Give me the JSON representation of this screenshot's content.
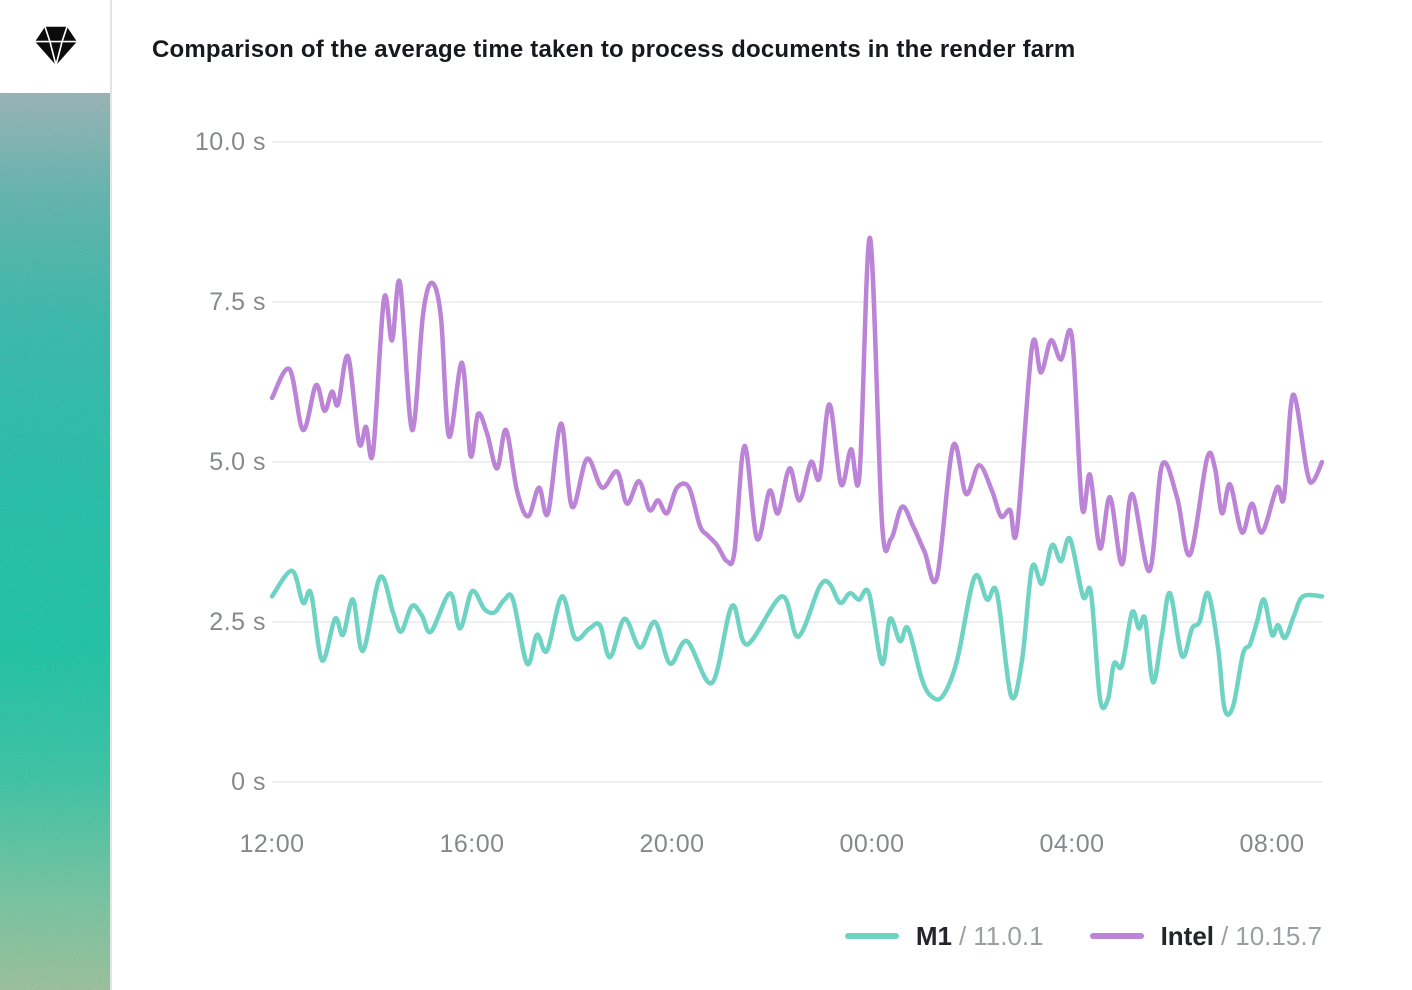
{
  "sidebar": {
    "logo_icon": "sketch-diamond-icon",
    "gradient_colors": [
      "#93b1b4",
      "#2ab7a7",
      "#13bea4",
      "#0cc2a1",
      "#6ec39c",
      "#96bf96"
    ]
  },
  "legend": {
    "separator": "/"
  },
  "chart_data": {
    "type": "line",
    "title": "Comparison of the average time taken to process documents in the render farm",
    "xlabel": "",
    "ylabel": "seconds",
    "grid": "horizontal",
    "legend_position": "bottom-right",
    "ylim": [
      0,
      10
    ],
    "x_span_hours": [
      0,
      21
    ],
    "y_ticks": [
      {
        "v": 0,
        "label": "0 s"
      },
      {
        "v": 2.5,
        "label": "2.5 s"
      },
      {
        "v": 5,
        "label": "5.0 s"
      },
      {
        "v": 7.5,
        "label": "7.5 s"
      },
      {
        "v": 10,
        "label": "10.0 s"
      }
    ],
    "x_ticks": [
      {
        "t": 0,
        "label": "12:00"
      },
      {
        "t": 4,
        "label": "16:00"
      },
      {
        "t": 8,
        "label": "20:00"
      },
      {
        "t": 12,
        "label": "00:00"
      },
      {
        "t": 16,
        "label": "04:00"
      },
      {
        "t": 20,
        "label": "08:00"
      }
    ],
    "series": [
      {
        "name": "M1",
        "os_version": "11.0.1",
        "color": "#6fd3c4",
        "points": [
          [
            0.0,
            2.9
          ],
          [
            0.4,
            3.3
          ],
          [
            0.62,
            2.8
          ],
          [
            0.78,
            2.95
          ],
          [
            1.0,
            1.9
          ],
          [
            1.26,
            2.55
          ],
          [
            1.42,
            2.3
          ],
          [
            1.62,
            2.85
          ],
          [
            1.82,
            2.05
          ],
          [
            2.16,
            3.2
          ],
          [
            2.42,
            2.65
          ],
          [
            2.58,
            2.35
          ],
          [
            2.8,
            2.75
          ],
          [
            3.0,
            2.6
          ],
          [
            3.18,
            2.35
          ],
          [
            3.56,
            2.95
          ],
          [
            3.76,
            2.4
          ],
          [
            4.0,
            2.98
          ],
          [
            4.25,
            2.7
          ],
          [
            4.45,
            2.65
          ],
          [
            4.65,
            2.85
          ],
          [
            4.82,
            2.85
          ],
          [
            5.1,
            1.85
          ],
          [
            5.3,
            2.3
          ],
          [
            5.5,
            2.05
          ],
          [
            5.8,
            2.9
          ],
          [
            6.06,
            2.25
          ],
          [
            6.35,
            2.4
          ],
          [
            6.56,
            2.45
          ],
          [
            6.76,
            1.95
          ],
          [
            7.05,
            2.55
          ],
          [
            7.36,
            2.1
          ],
          [
            7.66,
            2.5
          ],
          [
            7.96,
            1.85
          ],
          [
            8.3,
            2.2
          ],
          [
            8.8,
            1.55
          ],
          [
            9.2,
            2.75
          ],
          [
            9.5,
            2.15
          ],
          [
            10.2,
            2.9
          ],
          [
            10.52,
            2.27
          ],
          [
            10.95,
            3.05
          ],
          [
            11.15,
            3.1
          ],
          [
            11.36,
            2.8
          ],
          [
            11.56,
            2.95
          ],
          [
            11.74,
            2.85
          ],
          [
            11.94,
            2.95
          ],
          [
            12.2,
            1.85
          ],
          [
            12.36,
            2.55
          ],
          [
            12.56,
            2.2
          ],
          [
            12.72,
            2.4
          ],
          [
            13.0,
            1.6
          ],
          [
            13.2,
            1.33
          ],
          [
            13.42,
            1.35
          ],
          [
            13.7,
            1.9
          ],
          [
            14.05,
            3.2
          ],
          [
            14.3,
            2.85
          ],
          [
            14.5,
            2.95
          ],
          [
            14.78,
            1.35
          ],
          [
            15.0,
            1.9
          ],
          [
            15.2,
            3.35
          ],
          [
            15.4,
            3.1
          ],
          [
            15.6,
            3.7
          ],
          [
            15.78,
            3.45
          ],
          [
            15.96,
            3.8
          ],
          [
            16.22,
            2.9
          ],
          [
            16.38,
            2.95
          ],
          [
            16.56,
            1.3
          ],
          [
            16.72,
            1.3
          ],
          [
            16.84,
            1.85
          ],
          [
            17.0,
            1.82
          ],
          [
            17.2,
            2.65
          ],
          [
            17.34,
            2.4
          ],
          [
            17.46,
            2.55
          ],
          [
            17.62,
            1.56
          ],
          [
            17.8,
            2.3
          ],
          [
            17.96,
            2.95
          ],
          [
            18.2,
            1.97
          ],
          [
            18.4,
            2.4
          ],
          [
            18.55,
            2.5
          ],
          [
            18.72,
            2.95
          ],
          [
            18.92,
            2.1
          ],
          [
            19.05,
            1.15
          ],
          [
            19.22,
            1.18
          ],
          [
            19.42,
            2.0
          ],
          [
            19.56,
            2.15
          ],
          [
            19.7,
            2.5
          ],
          [
            19.84,
            2.85
          ],
          [
            20.0,
            2.3
          ],
          [
            20.12,
            2.45
          ],
          [
            20.26,
            2.25
          ],
          [
            20.44,
            2.6
          ],
          [
            20.62,
            2.9
          ],
          [
            21.0,
            2.9
          ]
        ]
      },
      {
        "name": "Intel",
        "os_version": "10.15.7",
        "color": "#bc84d6",
        "points": [
          [
            0.0,
            6.0
          ],
          [
            0.35,
            6.45
          ],
          [
            0.62,
            5.5
          ],
          [
            0.88,
            6.2
          ],
          [
            1.05,
            5.8
          ],
          [
            1.2,
            6.1
          ],
          [
            1.32,
            5.9
          ],
          [
            1.52,
            6.65
          ],
          [
            1.74,
            5.3
          ],
          [
            1.88,
            5.55
          ],
          [
            2.02,
            5.15
          ],
          [
            2.24,
            7.55
          ],
          [
            2.4,
            6.9
          ],
          [
            2.56,
            7.8
          ],
          [
            2.8,
            5.5
          ],
          [
            3.02,
            7.3
          ],
          [
            3.2,
            7.8
          ],
          [
            3.38,
            7.25
          ],
          [
            3.54,
            5.4
          ],
          [
            3.8,
            6.55
          ],
          [
            3.97,
            5.1
          ],
          [
            4.12,
            5.75
          ],
          [
            4.3,
            5.45
          ],
          [
            4.5,
            4.9
          ],
          [
            4.68,
            5.5
          ],
          [
            4.9,
            4.55
          ],
          [
            5.12,
            4.15
          ],
          [
            5.34,
            4.6
          ],
          [
            5.52,
            4.2
          ],
          [
            5.78,
            5.6
          ],
          [
            6.0,
            4.3
          ],
          [
            6.3,
            5.05
          ],
          [
            6.6,
            4.6
          ],
          [
            6.9,
            4.85
          ],
          [
            7.1,
            4.35
          ],
          [
            7.34,
            4.7
          ],
          [
            7.55,
            4.25
          ],
          [
            7.72,
            4.4
          ],
          [
            7.9,
            4.2
          ],
          [
            8.1,
            4.6
          ],
          [
            8.34,
            4.6
          ],
          [
            8.56,
            4.0
          ],
          [
            8.72,
            3.85
          ],
          [
            8.9,
            3.7
          ],
          [
            9.1,
            3.45
          ],
          [
            9.25,
            3.6
          ],
          [
            9.45,
            5.25
          ],
          [
            9.7,
            3.8
          ],
          [
            9.95,
            4.55
          ],
          [
            10.12,
            4.2
          ],
          [
            10.35,
            4.9
          ],
          [
            10.55,
            4.4
          ],
          [
            10.78,
            5.0
          ],
          [
            10.95,
            4.75
          ],
          [
            11.15,
            5.9
          ],
          [
            11.38,
            4.65
          ],
          [
            11.58,
            5.2
          ],
          [
            11.75,
            4.8
          ],
          [
            11.96,
            8.5
          ],
          [
            12.2,
            4.05
          ],
          [
            12.38,
            3.8
          ],
          [
            12.6,
            4.3
          ],
          [
            12.82,
            4.0
          ],
          [
            13.05,
            3.6
          ],
          [
            13.3,
            3.2
          ],
          [
            13.62,
            5.25
          ],
          [
            13.88,
            4.5
          ],
          [
            14.14,
            4.95
          ],
          [
            14.4,
            4.55
          ],
          [
            14.58,
            4.15
          ],
          [
            14.76,
            4.25
          ],
          [
            14.9,
            3.95
          ],
          [
            15.2,
            6.8
          ],
          [
            15.38,
            6.4
          ],
          [
            15.58,
            6.9
          ],
          [
            15.78,
            6.6
          ],
          [
            16.0,
            6.95
          ],
          [
            16.2,
            4.3
          ],
          [
            16.36,
            4.8
          ],
          [
            16.56,
            3.65
          ],
          [
            16.76,
            4.45
          ],
          [
            17.0,
            3.4
          ],
          [
            17.2,
            4.5
          ],
          [
            17.55,
            3.3
          ],
          [
            17.8,
            4.95
          ],
          [
            18.1,
            4.45
          ],
          [
            18.36,
            3.55
          ],
          [
            18.7,
            5.05
          ],
          [
            18.86,
            4.9
          ],
          [
            19.0,
            4.2
          ],
          [
            19.16,
            4.65
          ],
          [
            19.4,
            3.9
          ],
          [
            19.6,
            4.35
          ],
          [
            19.8,
            3.9
          ],
          [
            20.1,
            4.6
          ],
          [
            20.24,
            4.45
          ],
          [
            20.42,
            6.05
          ],
          [
            20.7,
            4.85
          ],
          [
            20.82,
            4.7
          ],
          [
            21.0,
            5.0
          ]
        ]
      }
    ]
  }
}
